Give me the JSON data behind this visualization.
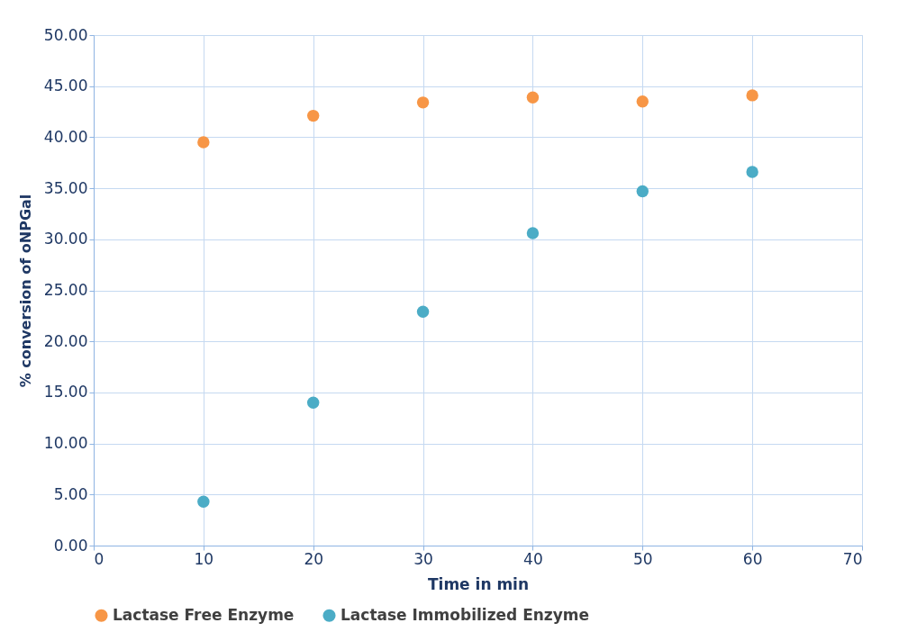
{
  "chart_data": {
    "type": "scatter",
    "xlabel": "Time in min",
    "ylabel": "% conversion of oNPGal",
    "x": [
      10,
      20,
      30,
      40,
      50,
      60
    ],
    "series": [
      {
        "name": "Lactase Free Enzyme",
        "color": "#f79646",
        "values": [
          39.5,
          42.1,
          43.4,
          43.9,
          43.5,
          44.1
        ]
      },
      {
        "name": "Lactase Immobilized Enzyme",
        "color": "#4bacc6",
        "values": [
          4.3,
          14.0,
          22.9,
          30.6,
          34.7,
          36.6
        ]
      }
    ],
    "xlim": [
      0,
      70
    ],
    "xticks": [
      0,
      10,
      20,
      30,
      40,
      50,
      60,
      70
    ],
    "ylim": [
      0,
      50
    ],
    "yticks": [
      {
        "value": 0,
        "label": "0.00"
      },
      {
        "value": 5,
        "label": "5.00"
      },
      {
        "value": 10,
        "label": "10.00"
      },
      {
        "value": 15,
        "label": "15.00"
      },
      {
        "value": 20,
        "label": "20.00"
      },
      {
        "value": 25,
        "label": "25.00"
      },
      {
        "value": 30,
        "label": "30.00"
      },
      {
        "value": 35,
        "label": "35.00"
      },
      {
        "value": 40,
        "label": "40.00"
      },
      {
        "value": 45,
        "label": "45.00"
      },
      {
        "value": 50,
        "label": "50.00"
      }
    ],
    "grid": true,
    "legend": "bottom",
    "marker": "circle"
  }
}
